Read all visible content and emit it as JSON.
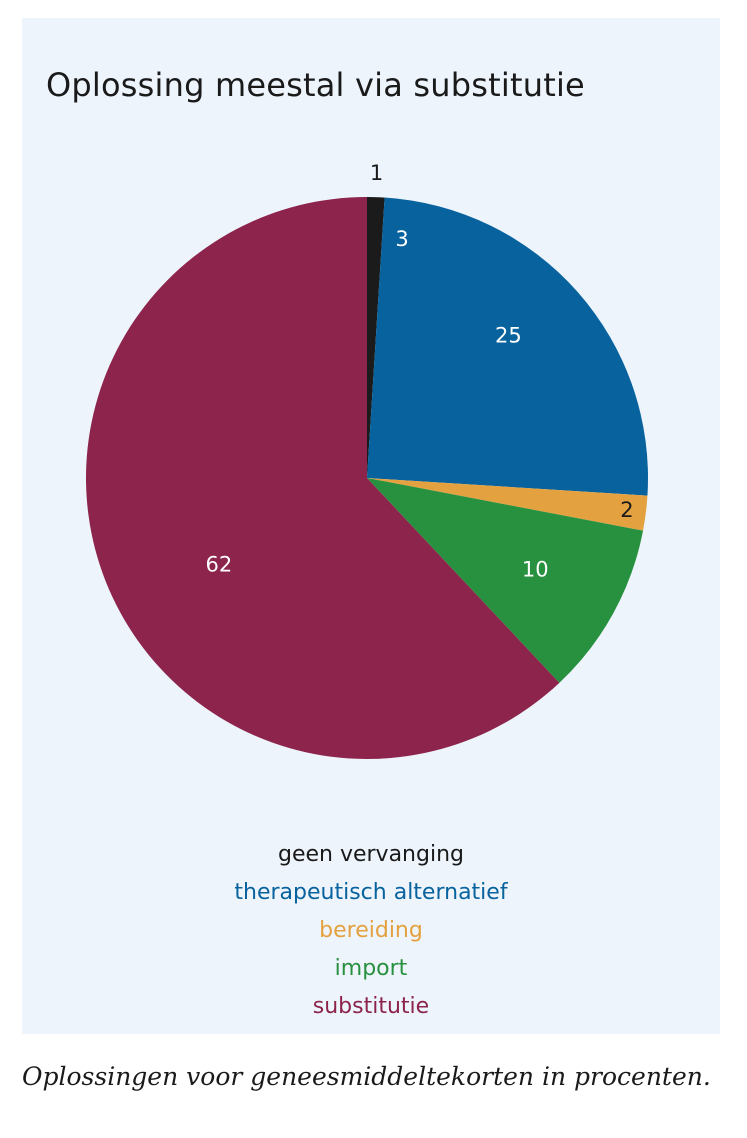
{
  "chart_data": {
    "type": "pie",
    "title": "Oplossing meestal via substitutie",
    "slices": [
      {
        "name": "geen vervanging",
        "value": 1,
        "label": "1",
        "color": "#1b1b1b",
        "label_color": "#1a1a1a"
      },
      {
        "name": "therapeutisch alternatief",
        "value": 25,
        "label": "25",
        "color": "#08629e",
        "label_color": "#ffffff"
      },
      {
        "name": "bereiding",
        "value": 2,
        "label": "2",
        "color": "#e4a13f",
        "label_color": "#1a1a1a"
      },
      {
        "name": "import",
        "value": 10,
        "label": "10",
        "color": "#28913f",
        "label_color": "#ffffff"
      },
      {
        "name": "substitutie",
        "value": 62,
        "label": "62",
        "color": "#8c244b",
        "label_color": "#ffffff"
      }
    ],
    "extra_labels": [
      {
        "text": "3",
        "color": "#ffffff"
      }
    ],
    "legend_placement": "bottom-center"
  },
  "legend": [
    {
      "label": "geen vervanging",
      "color": "#1a1a1a"
    },
    {
      "label": "therapeutisch alternatief",
      "color": "#08629e"
    },
    {
      "label": "bereiding",
      "color": "#e4a13f"
    },
    {
      "label": "import",
      "color": "#28913f"
    },
    {
      "label": "substitutie",
      "color": "#8c244b"
    }
  ],
  "caption": "Oplossingen voor geneesmiddeltekorten in procenten."
}
